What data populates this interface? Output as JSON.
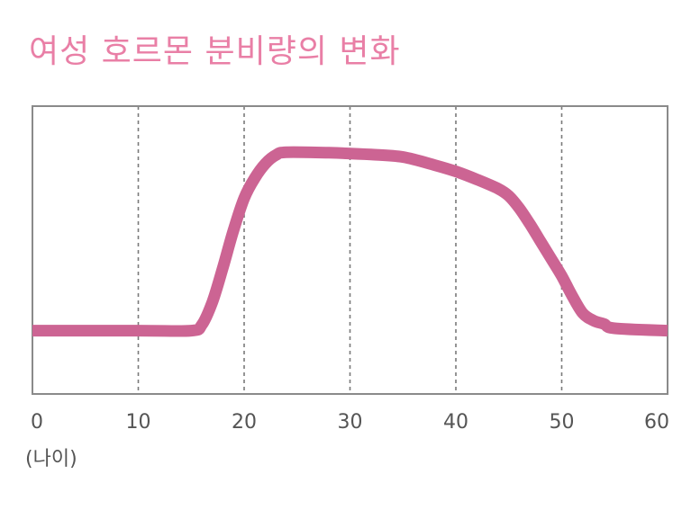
{
  "chart_data": {
    "type": "line",
    "title": "여성 호르몬 분비량의 변화",
    "xlabel": "(나이)",
    "ylabel": "",
    "xlim": [
      0,
      60
    ],
    "x_ticks": [
      0,
      10,
      20,
      30,
      40,
      50,
      60
    ],
    "x_tick_labels": [
      "0",
      "10",
      "20",
      "30",
      "40",
      "50",
      "60"
    ],
    "grid": "vertical-dashed",
    "ylim": [
      0,
      100
    ],
    "series": [
      {
        "color": "#cc6493",
        "x": [
          0,
          10,
          15,
          16,
          17,
          18,
          19,
          20,
          21,
          22,
          23,
          24,
          28,
          32,
          35,
          38,
          40,
          42,
          44,
          45,
          46,
          47,
          48,
          49,
          50,
          51,
          52,
          53,
          54,
          55,
          60
        ],
        "y": [
          22,
          22,
          22,
          24,
          32,
          44,
          57,
          68,
          75,
          80,
          83,
          84,
          83.8,
          83.2,
          82.3,
          79.5,
          77.3,
          74.5,
          71.3,
          68.8,
          64.5,
          59,
          53,
          47,
          41,
          34,
          28,
          25.5,
          24.3,
          22.8,
          22
        ]
      }
    ]
  }
}
